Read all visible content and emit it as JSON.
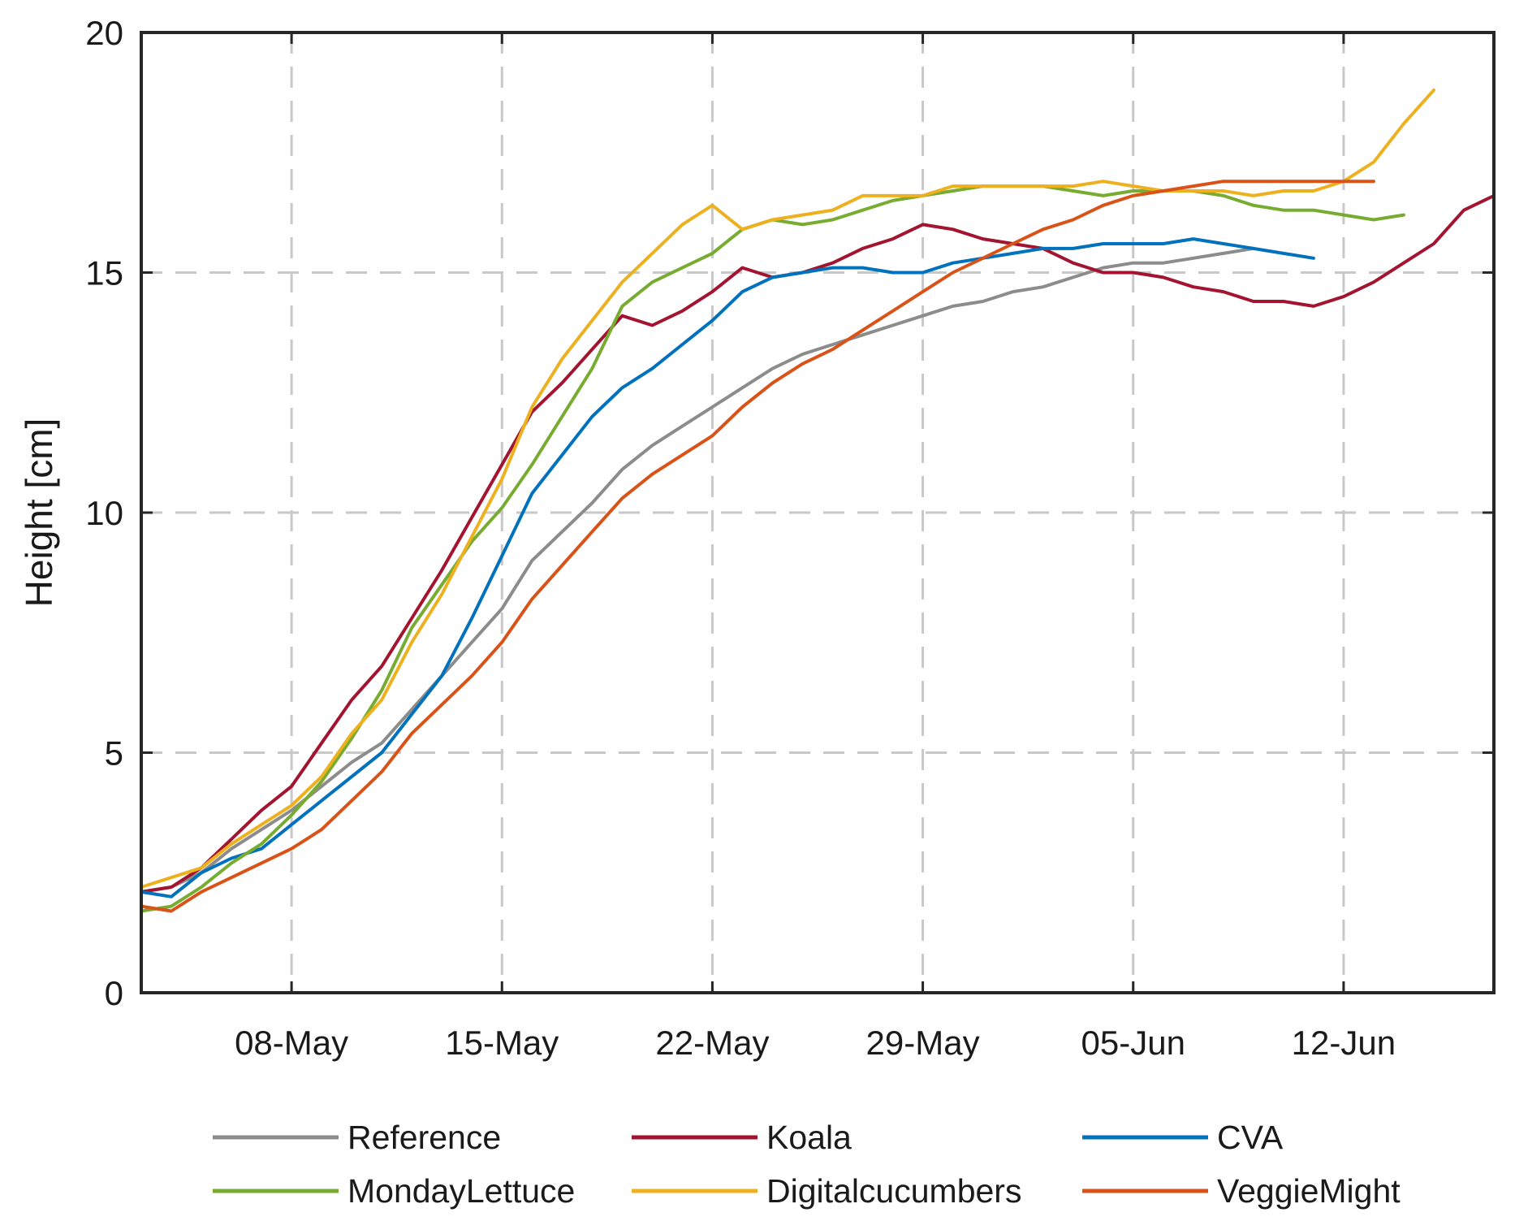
{
  "chart_data": {
    "type": "line",
    "title": "",
    "xlabel": "",
    "ylabel": "Height [cm]",
    "x_unit": "days since 03-May",
    "xlim": [
      0,
      45
    ],
    "ylim": [
      0,
      20
    ],
    "y_ticks": [
      0,
      5,
      10,
      15,
      20
    ],
    "x_ticks": [
      {
        "value": 5,
        "label": "08-May"
      },
      {
        "value": 12,
        "label": "15-May"
      },
      {
        "value": 19,
        "label": "22-May"
      },
      {
        "value": 26,
        "label": "29-May"
      },
      {
        "value": 33,
        "label": "05-Jun"
      },
      {
        "value": 40,
        "label": "12-Jun"
      }
    ],
    "grid": true,
    "legend_position": "bottom",
    "series": [
      {
        "name": "Reference",
        "color": "#8c8c8c",
        "x": [
          0,
          1,
          2,
          3,
          4,
          5,
          6,
          7,
          8,
          9,
          10,
          11,
          12,
          13,
          14,
          15,
          16,
          17,
          18,
          19,
          20,
          21,
          22,
          23,
          24,
          25,
          26,
          27,
          28,
          29,
          30,
          31,
          32,
          33,
          34,
          35,
          36,
          37
        ],
        "y": [
          2.1,
          2.2,
          2.5,
          3.0,
          3.4,
          3.8,
          4.3,
          4.8,
          5.2,
          5.9,
          6.6,
          7.3,
          8.0,
          9.0,
          9.6,
          10.2,
          10.9,
          11.4,
          11.8,
          12.2,
          12.6,
          13.0,
          13.3,
          13.5,
          13.7,
          13.9,
          14.1,
          14.3,
          14.4,
          14.6,
          14.7,
          14.9,
          15.1,
          15.2,
          15.2,
          15.3,
          15.4,
          15.5
        ]
      },
      {
        "name": "Koala",
        "color": "#a2142f",
        "x": [
          0,
          1,
          2,
          3,
          4,
          5,
          6,
          7,
          8,
          9,
          10,
          11,
          12,
          13,
          14,
          15,
          16,
          17,
          18,
          19,
          20,
          21,
          22,
          23,
          24,
          25,
          26,
          27,
          28,
          29,
          30,
          31,
          32,
          33,
          34,
          35,
          36,
          37,
          38,
          39,
          40,
          41,
          42,
          43,
          44,
          45
        ],
        "y": [
          2.1,
          2.2,
          2.6,
          3.2,
          3.8,
          4.3,
          5.2,
          6.1,
          6.8,
          7.8,
          8.8,
          9.9,
          11.0,
          12.1,
          12.7,
          13.4,
          14.1,
          13.9,
          14.2,
          14.6,
          15.1,
          14.9,
          15.0,
          15.2,
          15.5,
          15.7,
          16.0,
          15.9,
          15.7,
          15.6,
          15.5,
          15.2,
          15.0,
          15.0,
          14.9,
          14.7,
          14.6,
          14.4,
          14.4,
          14.3,
          14.5,
          14.8,
          15.2,
          15.6,
          16.3,
          16.6
        ]
      },
      {
        "name": "CVA",
        "color": "#0072bd",
        "x": [
          0,
          1,
          2,
          3,
          4,
          5,
          6,
          7,
          8,
          9,
          10,
          11,
          12,
          13,
          14,
          15,
          16,
          17,
          18,
          19,
          20,
          21,
          22,
          23,
          24,
          25,
          26,
          27,
          28,
          29,
          30,
          31,
          32,
          33,
          34,
          35,
          36,
          37,
          38,
          39
        ],
        "y": [
          2.1,
          2.0,
          2.5,
          2.8,
          3.0,
          3.5,
          4.0,
          4.5,
          5.0,
          5.8,
          6.6,
          7.8,
          9.1,
          10.4,
          11.2,
          12.0,
          12.6,
          13.0,
          13.5,
          14.0,
          14.6,
          14.9,
          15.0,
          15.1,
          15.1,
          15.0,
          15.0,
          15.2,
          15.3,
          15.4,
          15.5,
          15.5,
          15.6,
          15.6,
          15.6,
          15.7,
          15.6,
          15.5,
          15.4,
          15.3
        ]
      },
      {
        "name": "MondayLettuce",
        "color": "#77ac30",
        "x": [
          0,
          1,
          2,
          3,
          4,
          5,
          6,
          7,
          8,
          9,
          10,
          11,
          12,
          13,
          14,
          15,
          16,
          17,
          18,
          19,
          20,
          21,
          22,
          23,
          24,
          25,
          26,
          27,
          28,
          29,
          30,
          31,
          32,
          33,
          34,
          35,
          36,
          37,
          38,
          39,
          40,
          41,
          42
        ],
        "y": [
          1.7,
          1.8,
          2.2,
          2.7,
          3.1,
          3.7,
          4.4,
          5.3,
          6.3,
          7.6,
          8.5,
          9.4,
          10.1,
          11.0,
          12.0,
          13.0,
          14.3,
          14.8,
          15.1,
          15.4,
          15.9,
          16.1,
          16.0,
          16.1,
          16.3,
          16.5,
          16.6,
          16.7,
          16.8,
          16.8,
          16.8,
          16.7,
          16.6,
          16.7,
          16.7,
          16.7,
          16.6,
          16.4,
          16.3,
          16.3,
          16.2,
          16.1,
          16.2
        ]
      },
      {
        "name": "Digitalcucumbers",
        "color": "#edb120",
        "x": [
          0,
          1,
          2,
          3,
          4,
          5,
          6,
          7,
          8,
          9,
          10,
          11,
          12,
          13,
          14,
          15,
          16,
          17,
          18,
          19,
          20,
          21,
          22,
          23,
          24,
          25,
          26,
          27,
          28,
          29,
          30,
          31,
          32,
          33,
          34,
          35,
          36,
          37,
          38,
          39,
          40,
          41,
          42,
          43
        ],
        "y": [
          2.2,
          2.4,
          2.6,
          3.1,
          3.5,
          3.9,
          4.5,
          5.4,
          6.1,
          7.3,
          8.3,
          9.5,
          10.7,
          12.2,
          13.2,
          14.0,
          14.8,
          15.4,
          16.0,
          16.4,
          15.9,
          16.1,
          16.2,
          16.3,
          16.6,
          16.6,
          16.6,
          16.8,
          16.8,
          16.8,
          16.8,
          16.8,
          16.9,
          16.8,
          16.7,
          16.7,
          16.7,
          16.6,
          16.7,
          16.7,
          16.9,
          17.3,
          18.1,
          18.8
        ]
      },
      {
        "name": "VeggieMight",
        "color": "#d95319",
        "x": [
          0,
          1,
          2,
          3,
          4,
          5,
          6,
          7,
          8,
          9,
          10,
          11,
          12,
          13,
          14,
          15,
          16,
          17,
          18,
          19,
          20,
          21,
          22,
          23,
          24,
          25,
          26,
          27,
          28,
          29,
          30,
          31,
          32,
          33,
          34,
          35,
          36,
          37,
          38,
          39,
          40,
          41
        ],
        "y": [
          1.8,
          1.7,
          2.1,
          2.4,
          2.7,
          3.0,
          3.4,
          4.0,
          4.6,
          5.4,
          6.0,
          6.6,
          7.3,
          8.2,
          8.9,
          9.6,
          10.3,
          10.8,
          11.2,
          11.6,
          12.2,
          12.7,
          13.1,
          13.4,
          13.8,
          14.2,
          14.6,
          15.0,
          15.3,
          15.6,
          15.9,
          16.1,
          16.4,
          16.6,
          16.7,
          16.8,
          16.9,
          16.9,
          16.9,
          16.9,
          16.9,
          16.9
        ]
      }
    ]
  }
}
